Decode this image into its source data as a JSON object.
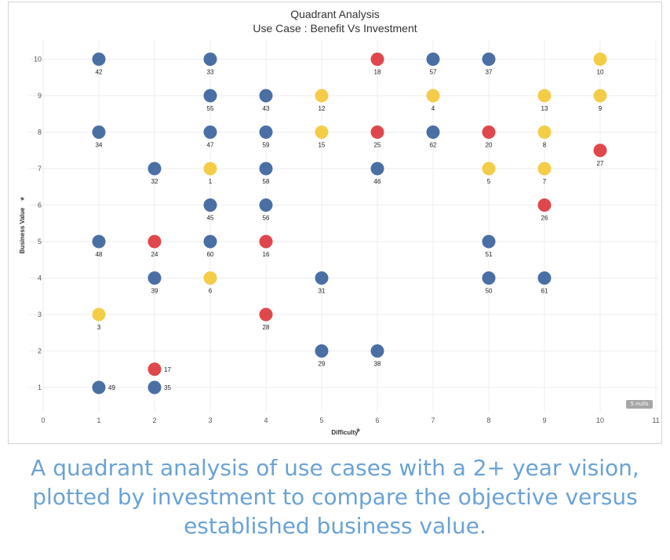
{
  "chart_data": {
    "type": "scatter",
    "title": "Quadrant Analysis",
    "subtitle": "Use Case : Benefit Vs Investment",
    "xlabel": "Difficulty",
    "ylabel": "Business Value",
    "xlim": [
      0,
      11
    ],
    "ylim": [
      0.5,
      10.4
    ],
    "x_ticks": [
      0,
      1,
      2,
      3,
      4,
      5,
      6,
      7,
      8,
      9,
      10,
      11
    ],
    "y_ticks": [
      1,
      2,
      3,
      4,
      5,
      6,
      7,
      8,
      9,
      10
    ],
    "grid": true,
    "colors": {
      "blue": "#4a6fa5",
      "red": "#e0474c",
      "yellow": "#f4cd48"
    },
    "points": [
      {
        "x": 1,
        "y": 10,
        "label": "42",
        "color": "blue"
      },
      {
        "x": 3,
        "y": 10,
        "label": "33",
        "color": "blue"
      },
      {
        "x": 6,
        "y": 10,
        "label": "18",
        "color": "red"
      },
      {
        "x": 7,
        "y": 10,
        "label": "57",
        "color": "blue"
      },
      {
        "x": 8,
        "y": 10,
        "label": "37",
        "color": "blue"
      },
      {
        "x": 10,
        "y": 10,
        "label": "10",
        "color": "yellow"
      },
      {
        "x": 3,
        "y": 9,
        "label": "55",
        "color": "blue"
      },
      {
        "x": 4,
        "y": 9,
        "label": "43",
        "color": "blue"
      },
      {
        "x": 5,
        "y": 9,
        "label": "12",
        "color": "yellow"
      },
      {
        "x": 7,
        "y": 9,
        "label": "4",
        "color": "yellow"
      },
      {
        "x": 9,
        "y": 9,
        "label": "13",
        "color": "yellow"
      },
      {
        "x": 10,
        "y": 9,
        "label": "9",
        "color": "yellow"
      },
      {
        "x": 1,
        "y": 8,
        "label": "34",
        "color": "blue"
      },
      {
        "x": 3,
        "y": 8,
        "label": "47",
        "color": "blue"
      },
      {
        "x": 4,
        "y": 8,
        "label": "59",
        "color": "blue"
      },
      {
        "x": 5,
        "y": 8,
        "label": "15",
        "color": "yellow"
      },
      {
        "x": 6,
        "y": 8,
        "label": "25",
        "color": "red"
      },
      {
        "x": 7,
        "y": 8,
        "label": "62",
        "color": "blue"
      },
      {
        "x": 8,
        "y": 8,
        "label": "20",
        "color": "red"
      },
      {
        "x": 9,
        "y": 8,
        "label": "8",
        "color": "yellow"
      },
      {
        "x": 10,
        "y": 7.5,
        "label": "27",
        "color": "red"
      },
      {
        "x": 2,
        "y": 7,
        "label": "32",
        "color": "blue"
      },
      {
        "x": 3,
        "y": 7,
        "label": "1",
        "color": "yellow"
      },
      {
        "x": 4,
        "y": 7,
        "label": "58",
        "color": "blue"
      },
      {
        "x": 6,
        "y": 7,
        "label": "46",
        "color": "blue"
      },
      {
        "x": 8,
        "y": 7,
        "label": "5",
        "color": "yellow"
      },
      {
        "x": 9,
        "y": 7,
        "label": "7",
        "color": "yellow"
      },
      {
        "x": 3,
        "y": 6,
        "label": "45",
        "color": "blue"
      },
      {
        "x": 4,
        "y": 6,
        "label": "56",
        "color": "blue"
      },
      {
        "x": 9,
        "y": 6,
        "label": "26",
        "color": "red"
      },
      {
        "x": 1,
        "y": 5,
        "label": "48",
        "color": "blue"
      },
      {
        "x": 2,
        "y": 5,
        "label": "24",
        "color": "red"
      },
      {
        "x": 3,
        "y": 5,
        "label": "60",
        "color": "blue"
      },
      {
        "x": 4,
        "y": 5,
        "label": "16",
        "color": "red"
      },
      {
        "x": 8,
        "y": 5,
        "label": "51",
        "color": "blue"
      },
      {
        "x": 2,
        "y": 4,
        "label": "39",
        "color": "blue"
      },
      {
        "x": 3,
        "y": 4,
        "label": "6",
        "color": "yellow"
      },
      {
        "x": 5,
        "y": 4,
        "label": "31",
        "color": "blue"
      },
      {
        "x": 8,
        "y": 4,
        "label": "50",
        "color": "blue"
      },
      {
        "x": 9,
        "y": 4,
        "label": "61",
        "color": "blue"
      },
      {
        "x": 1,
        "y": 3,
        "label": "3",
        "color": "yellow"
      },
      {
        "x": 4,
        "y": 3,
        "label": "28",
        "color": "red"
      },
      {
        "x": 5,
        "y": 2,
        "label": "29",
        "color": "blue"
      },
      {
        "x": 6,
        "y": 2,
        "label": "38",
        "color": "blue"
      },
      {
        "x": 2,
        "y": 1.5,
        "label": "17",
        "color": "red",
        "label_side": "right"
      },
      {
        "x": 1,
        "y": 1,
        "label": "49",
        "color": "blue",
        "label_side": "right"
      },
      {
        "x": 2,
        "y": 1,
        "label": "35",
        "color": "blue",
        "label_side": "right"
      }
    ],
    "nulls_indicator": "5 nulls"
  },
  "caption": "A quadrant analysis of use cases with a 2+ year vision, plotted by investment to compare the objective versus established business value."
}
